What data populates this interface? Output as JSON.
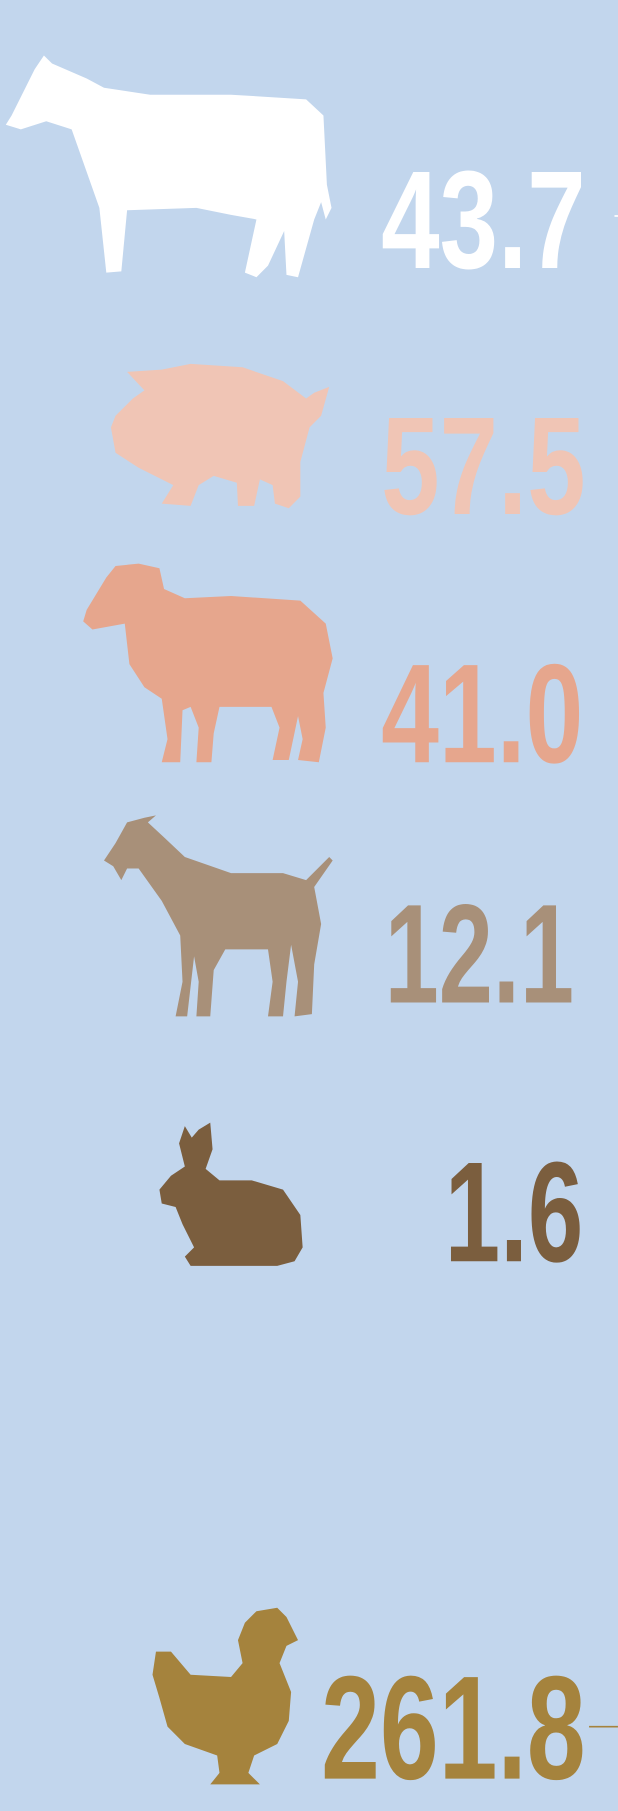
{
  "items": [
    {
      "value": "43.7",
      "color": "#ffffff"
    },
    {
      "value": "57.5",
      "color": "#f0c5b5"
    },
    {
      "value": "41.0",
      "color": "#e6a68d"
    },
    {
      "value": "12.1",
      "color": "#a89079"
    },
    {
      "value": "1.6",
      "color": "#7b5e3e"
    },
    {
      "value": "261.8",
      "color": "#a5833d"
    }
  ]
}
